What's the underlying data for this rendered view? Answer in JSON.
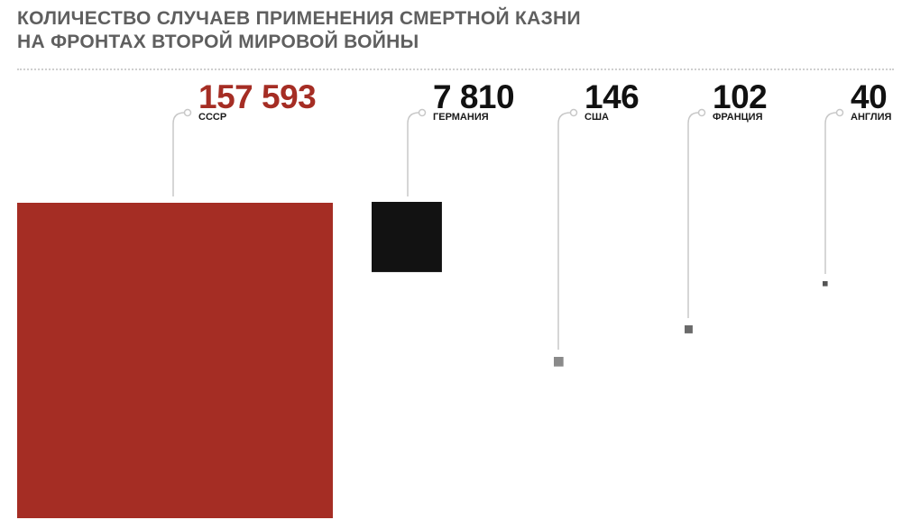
{
  "title_lines": [
    "КОЛИЧЕСТВО СЛУЧАЕВ ПРИМЕНЕНИЯ СМЕРТНОЙ КАЗНИ",
    "НА ФРОНТАХ ВТОРОЙ МИРОВОЙ ВОЙНЫ"
  ],
  "colors": {
    "title": "#5f5f5f",
    "highlight": "#a52d24",
    "value_default": "#111111",
    "connector": "#c8c8c8"
  },
  "chart_data": {
    "type": "proportional-area",
    "title": "КОЛИЧЕСТВО СЛУЧАЕВ ПРИМЕНЕНИЯ СМЕРТНОЙ КАЗНИ НА ФРОНТАХ ВТОРОЙ МИРОВОЙ ВОЙНЫ",
    "categories": [
      "СССР",
      "ГЕРМАНИЯ",
      "США",
      "ФРАНЦИЯ",
      "АНГЛИЯ"
    ],
    "values": [
      157593,
      7810,
      146,
      102,
      40
    ],
    "value_labels": [
      "157 593",
      "7 810",
      "146",
      "102",
      "40"
    ],
    "square_colors": [
      "#a52d24",
      "#121212",
      "#8a8a8a",
      "#6a6a6a",
      "#555555"
    ],
    "value_colors": [
      "#a52d24",
      "#111111",
      "#111111",
      "#111111",
      "#111111"
    ]
  }
}
